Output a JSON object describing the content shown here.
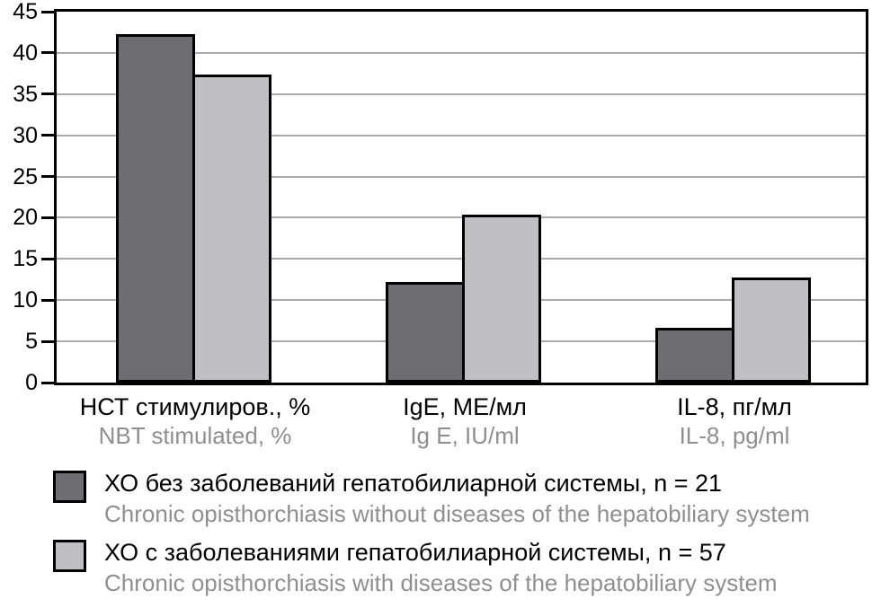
{
  "chart_data": {
    "type": "bar",
    "title": "",
    "xlabel": "",
    "ylabel": "",
    "ylim": [
      0,
      45
    ],
    "ytick_step": 5,
    "ytick_labels": [
      "0",
      "5",
      "10",
      "15",
      "20",
      "25",
      "30",
      "35",
      "40",
      "45"
    ],
    "grid": true,
    "legend_position": "bottom-left",
    "categories": [
      {
        "ru": "НСТ стимулиров., %",
        "en": "NBT stimulated, %"
      },
      {
        "ru": "IgE, МЕ/мл",
        "en": "Ig E, IU/ml"
      },
      {
        "ru": "IL-8, пг/мл",
        "en": "IL-8, pg/ml"
      }
    ],
    "series": [
      {
        "key": "without-diseases",
        "name_ru": "ХО без заболеваний гепатобилиарной системы, n = 21",
        "name_en": "Chronic opisthorchiasis without diseases of the hepatobiliary system",
        "color": "#6e6e70",
        "values": [
          41.9,
          11.9,
          6.3
        ]
      },
      {
        "key": "with-diseases",
        "name_ru": "ХО с заболеваниями гепатобилиарной системы, n = 57",
        "name_en": "Chronic opisthorchiasis with diseases of the hepatobiliary system",
        "color": "#c0c0c2",
        "values": [
          37.0,
          20.0,
          12.4
        ]
      }
    ],
    "colors": {
      "bar_border": "#000000",
      "axis": "#000000",
      "gridline": "#aaaaad",
      "primary_text": "#000000",
      "secondary_text": "#8f8f8f",
      "background": "#ffffff"
    }
  }
}
